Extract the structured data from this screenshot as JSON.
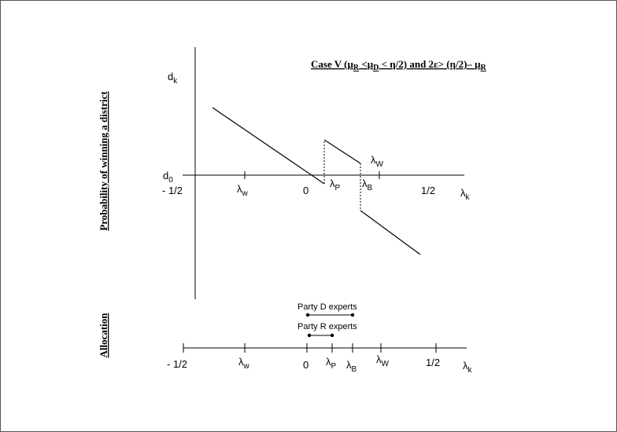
{
  "top_panel": {
    "case_prefix": "Case V (",
    "mu": "μ",
    "sub_R": "R",
    "sub_D": "D",
    "lt1": " <",
    "lt2": " < η/2) and 2ε> (η/2)– ",
    "y_axis_label": "d",
    "y_axis_sub": "k",
    "d0_label": "d",
    "d0_sub": "0",
    "x_axis_label": "λ",
    "x_axis_sub": "k",
    "neg_half": "- 1/2",
    "zero": "0",
    "pos_half": "1/2",
    "lambda": "λ",
    "sub_w": "w",
    "sub_W": "W",
    "sub_P": "P",
    "sub_B": "B",
    "side_label": "Probability of winning a district"
  },
  "bottom_panel": {
    "side_label": "Allocation",
    "party_d": "Party D experts",
    "party_r": "Party R experts",
    "neg_half": "- 1/2",
    "zero": "0",
    "pos_half": "1/2",
    "lambda": "λ",
    "sub_w": "w",
    "sub_W": "W",
    "sub_P": "P",
    "sub_B": "B",
    "sub_k": "k"
  }
}
